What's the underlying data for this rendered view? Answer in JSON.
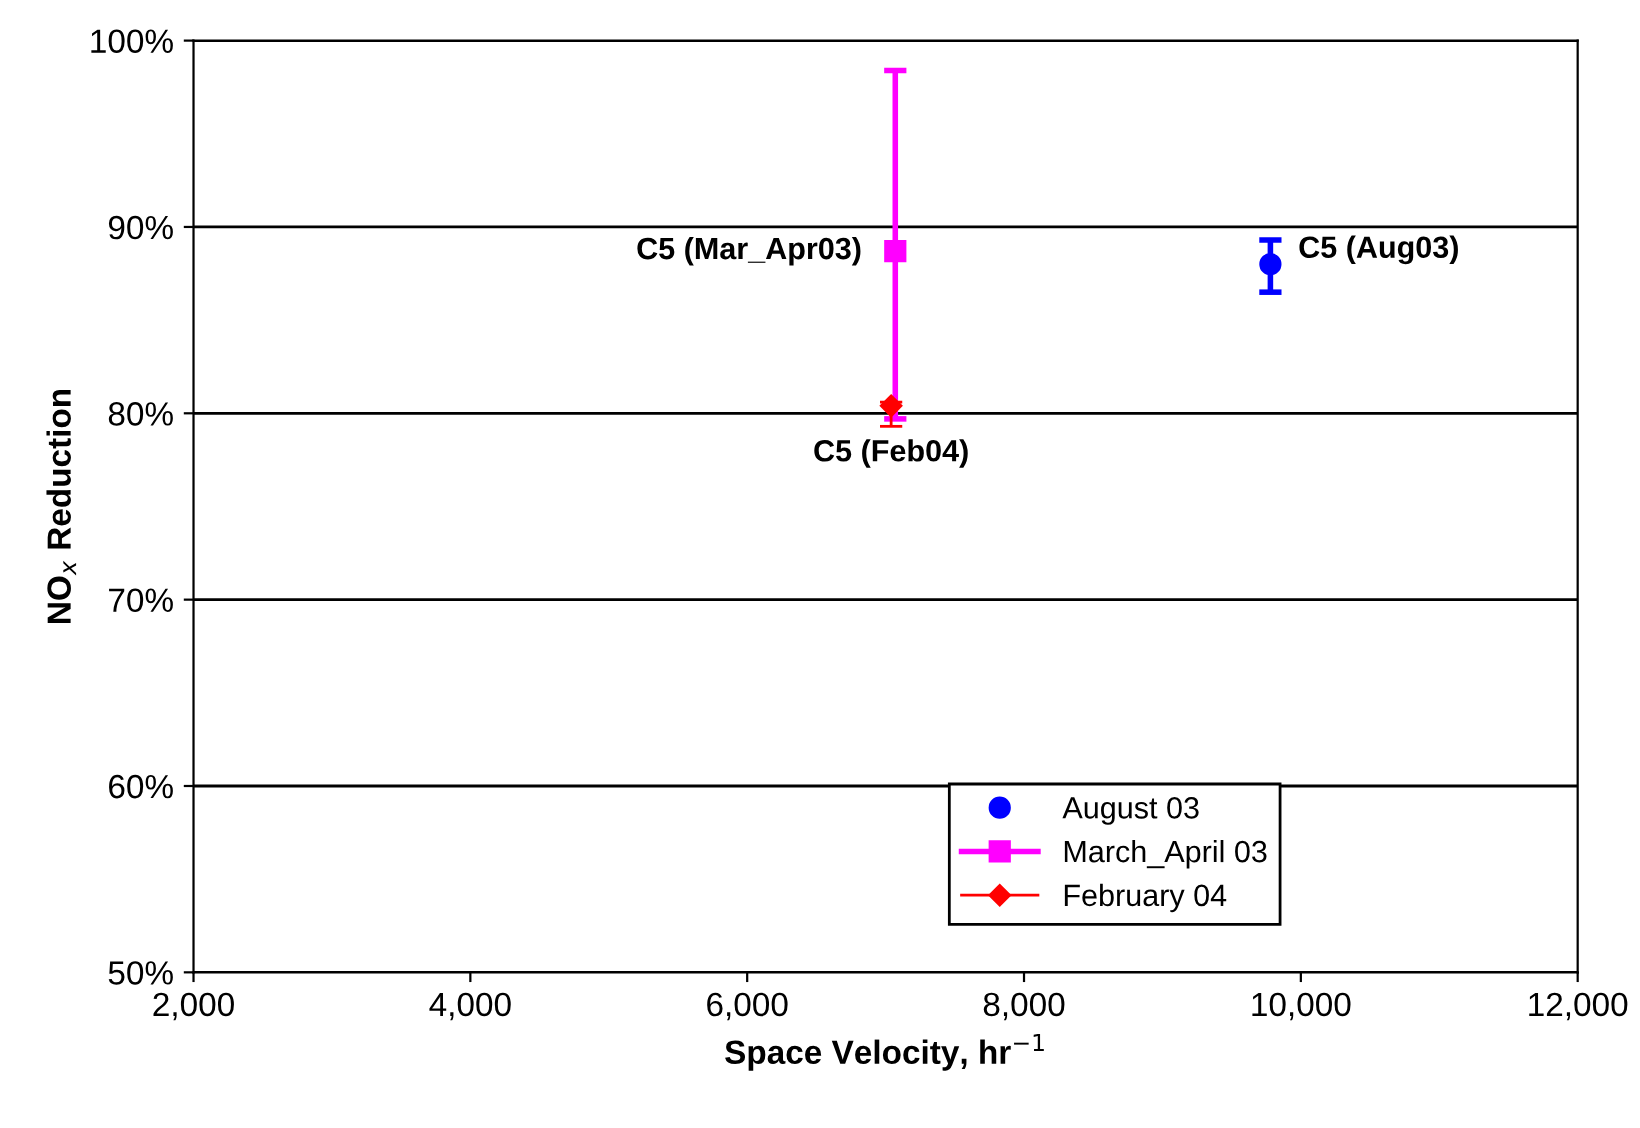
{
  "chart_data": {
    "type": "scatter",
    "xlabel": "Space Velocity, hr$^{−1}$",
    "ylabel": "NO$_{x}$ Reduction",
    "series": [
      {
        "name": "August 03",
        "color": "#0000ff",
        "marker": "circle",
        "x": [
          9780
        ],
        "values": [
          88.0
        ],
        "errors": [
          [
            86.5,
            89.3
          ]
        ]
      },
      {
        "name": "March_April 03",
        "color": "#ff00ff",
        "marker": "square",
        "x": [
          7070
        ],
        "values": [
          88.7
        ],
        "errors": [
          [
            79.7,
            98.4
          ]
        ]
      },
      {
        "name": "February 04",
        "color": "#ff0000",
        "marker": "diamond",
        "x": [
          7040
        ],
        "values": [
          80.4
        ],
        "errors": [
          [
            79.3,
            80.6
          ]
        ]
      }
    ],
    "annotations": [
      {
        "text": "C5 (Aug03)",
        "x": 9780,
        "y": 88.0
      },
      {
        "text": "C5 (Mar_Apr03)",
        "x": 7070,
        "y": 88.7
      },
      {
        "text": "C5 (Feb04)",
        "x": 7040,
        "y": 80.4
      }
    ],
    "xlim": [
      2000,
      12000
    ],
    "xticks": [
      {
        "value": 2000,
        "label": "2,000"
      },
      {
        "value": 4000,
        "label": "4,000"
      },
      {
        "value": 6000,
        "label": "6,000"
      },
      {
        "value": 8000,
        "label": "8,000"
      },
      {
        "value": 10000,
        "label": "10,000"
      },
      {
        "value": 12000,
        "label": "12,000"
      }
    ],
    "ylim": [
      50,
      100
    ],
    "yticks": [
      {
        "value": 50,
        "label": "50%"
      },
      {
        "value": 60,
        "label": "60%"
      },
      {
        "value": 70,
        "label": "70%"
      },
      {
        "value": 80,
        "label": "80%"
      },
      {
        "value": 90,
        "label": "90%"
      },
      {
        "value": 100,
        "label": "100%"
      }
    ],
    "grid": "y",
    "legend": "bottom right"
  }
}
